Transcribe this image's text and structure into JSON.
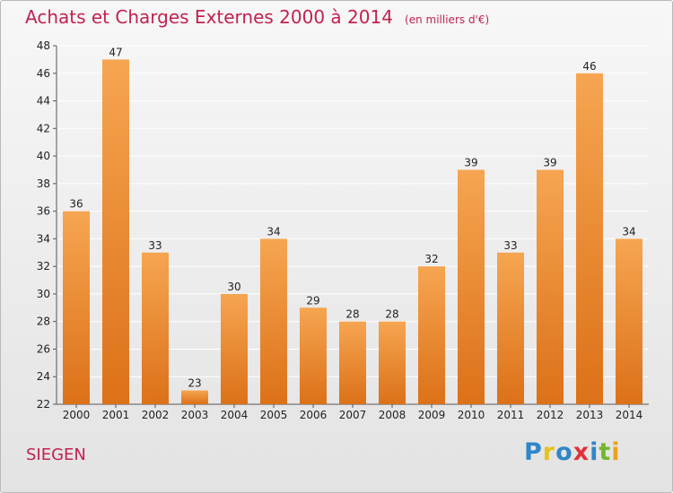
{
  "title": "Achats et Charges Externes 2000 à 2014",
  "subtitle": "(en milliers d'€)",
  "city": "SIEGEN",
  "logo": {
    "text": "Proxiti",
    "letter_colors": [
      "#2f86c9",
      "#e8c21c",
      "#2f86c9",
      "#e2303b",
      "#2f86c9",
      "#73b72b",
      "#e8a31c"
    ]
  },
  "colors": {
    "bar_light": "#f6a551",
    "bar_dark": "#dc7118",
    "title": "#c1224f",
    "grid": "#ffffff"
  },
  "chart_data": {
    "type": "bar",
    "categories": [
      "2000",
      "2001",
      "2002",
      "2003",
      "2004",
      "2005",
      "2006",
      "2007",
      "2008",
      "2009",
      "2010",
      "2011",
      "2012",
      "2013",
      "2014"
    ],
    "values": [
      36,
      47,
      33,
      23,
      30,
      34,
      29,
      28,
      28,
      32,
      39,
      33,
      39,
      46,
      34
    ],
    "ylim": [
      22,
      48
    ],
    "yticks": [
      22,
      24,
      26,
      28,
      30,
      32,
      34,
      36,
      38,
      40,
      42,
      44,
      46,
      48
    ],
    "grid": true,
    "data_labels": true
  }
}
